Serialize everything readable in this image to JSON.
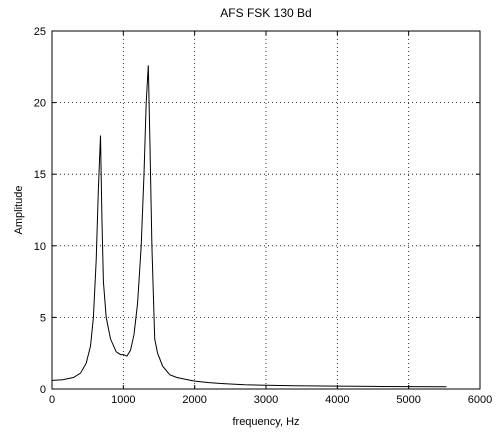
{
  "chart_data": {
    "type": "line",
    "title": "AFS FSK 130 Bd",
    "xlabel": "frequency, Hz",
    "ylabel": "Amplitude",
    "xlim": [
      0,
      6000
    ],
    "ylim": [
      0,
      25
    ],
    "xticks": [
      0,
      1000,
      2000,
      3000,
      4000,
      5000,
      6000
    ],
    "yticks": [
      0,
      5,
      10,
      15,
      20,
      25
    ],
    "grid": true,
    "series": [
      {
        "color": "#000000",
        "x": [
          0,
          150,
          300,
          400,
          480,
          540,
          580,
          620,
          650,
          680,
          700,
          720,
          760,
          820,
          900,
          960,
          1000,
          1050,
          1100,
          1150,
          1200,
          1250,
          1290,
          1320,
          1350,
          1370,
          1400,
          1440,
          1480,
          1550,
          1650,
          1750,
          1850,
          2000,
          2200,
          2400,
          2700,
          3000,
          3400,
          4000,
          4500,
          5000,
          5530
        ],
        "y": [
          0.6,
          0.65,
          0.8,
          1.1,
          1.8,
          3.0,
          5.0,
          9.0,
          14.0,
          17.7,
          12.0,
          7.5,
          5.0,
          3.5,
          2.6,
          2.4,
          2.4,
          2.3,
          2.7,
          3.8,
          6.0,
          10.0,
          15.0,
          20.0,
          22.6,
          18.0,
          10.0,
          3.5,
          2.5,
          1.6,
          1.0,
          0.8,
          0.7,
          0.55,
          0.45,
          0.38,
          0.3,
          0.26,
          0.22,
          0.2,
          0.18,
          0.17,
          0.16
        ]
      }
    ]
  }
}
